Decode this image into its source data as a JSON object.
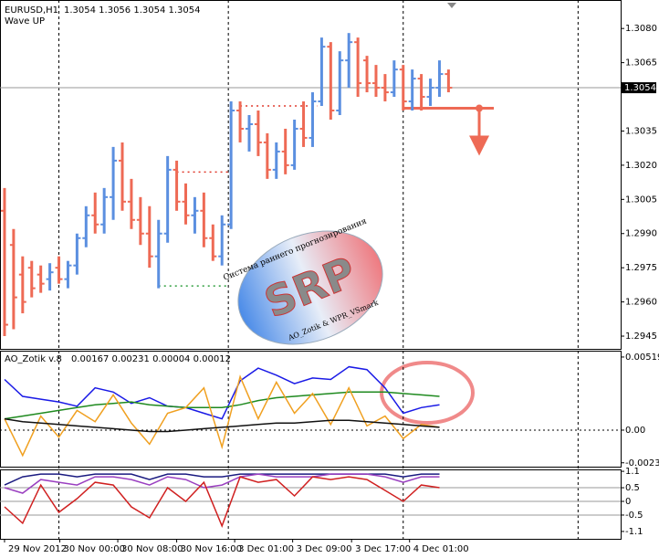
{
  "chart_data": [
    {
      "type": "ohlc",
      "title": "EURUSD,H1",
      "quote": "1.3054 1.3056 1.3054 1.3054",
      "subtitle": "Wave UP",
      "up_color": "#5b8fe0",
      "down_color": "#ee6a55",
      "open": [
        1.3,
        1.2985,
        1.2972,
        1.2975,
        1.2972,
        1.297,
        1.2975,
        1.297,
        1.2976,
        1.2988,
        1.2998,
        1.2994,
        1.3006,
        1.3022,
        1.3004,
        1.2996,
        1.299,
        1.298,
        1.299,
        1.3018,
        1.3004,
        1.2998,
        1.3,
        1.2988,
        1.298,
        1.2994,
        1.3044,
        1.3036,
        1.3038,
        1.303,
        1.3018,
        1.3026,
        1.302,
        1.3036,
        1.3032,
        1.3048,
        1.3072,
        1.3044,
        1.3066,
        1.3074,
        1.3066,
        1.3056,
        1.3054,
        1.3052,
        1.3062,
        1.3048,
        1.3058,
        1.305,
        1.3054,
        1.306
      ],
      "high": [
        1.301,
        1.2992,
        1.298,
        1.2978,
        1.2976,
        1.2977,
        1.298,
        1.2978,
        1.299,
        1.3002,
        1.3008,
        1.301,
        1.3028,
        1.303,
        1.3014,
        1.3006,
        1.3002,
        1.2996,
        1.3024,
        1.3022,
        1.3012,
        1.3006,
        1.3008,
        1.2994,
        1.2998,
        1.3048,
        1.3048,
        1.3042,
        1.3044,
        1.3034,
        1.303,
        1.3036,
        1.304,
        1.3048,
        1.3052,
        1.3076,
        1.3074,
        1.307,
        1.3078,
        1.3076,
        1.3068,
        1.3064,
        1.306,
        1.3066,
        1.3064,
        1.3062,
        1.306,
        1.3058,
        1.3066,
        1.3062
      ],
      "low": [
        1.2945,
        1.2948,
        1.2955,
        1.2962,
        1.2964,
        1.2965,
        1.2968,
        1.2966,
        1.2972,
        1.2984,
        1.299,
        1.299,
        1.2996,
        1.3,
        1.2992,
        1.2985,
        1.2975,
        1.2966,
        1.2986,
        1.3,
        1.2994,
        1.299,
        1.2984,
        1.2978,
        1.2976,
        1.2992,
        1.303,
        1.3026,
        1.3024,
        1.3014,
        1.3014,
        1.3016,
        1.3018,
        1.3028,
        1.3028,
        1.3046,
        1.304,
        1.3042,
        1.3054,
        1.305,
        1.3052,
        1.305,
        1.3048,
        1.305,
        1.3044,
        1.3044,
        1.3044,
        1.3046,
        1.305,
        1.3052
      ],
      "close": [
        1.295,
        1.2962,
        1.296,
        1.2966,
        1.2968,
        1.2973,
        1.297,
        1.2976,
        1.2988,
        1.2998,
        1.2994,
        1.3006,
        1.3022,
        1.3004,
        1.2996,
        1.299,
        1.298,
        1.299,
        1.3018,
        1.3004,
        1.2998,
        1.3,
        1.2988,
        1.298,
        1.2994,
        1.3044,
        1.3036,
        1.3038,
        1.303,
        1.3018,
        1.3026,
        1.302,
        1.3036,
        1.3032,
        1.3048,
        1.3072,
        1.3044,
        1.3066,
        1.3074,
        1.3056,
        1.3056,
        1.3054,
        1.3052,
        1.3062,
        1.3048,
        1.3058,
        1.305,
        1.3054,
        1.306,
        1.3054
      ],
      "xlim": [
        -0.5,
        68
      ],
      "ylim": [
        1.2939,
        1.30925
      ],
      "yticks": [
        {
          "value": 1.308,
          "label": "1.3080"
        },
        1.3065,
        1.3035,
        {
          "value": 1.302,
          "label": "1.3020"
        },
        1.3005,
        {
          "value": 1.299,
          "label": "1.2990"
        },
        1.2975,
        {
          "value": 1.296,
          "label": "1.2960"
        },
        1.2945
      ],
      "last_price": {
        "value": 1.3054,
        "label": "1.3054"
      },
      "separators": [
        6,
        24.7,
        44,
        63.3
      ],
      "levels": [
        {
          "value": 1.3017,
          "from": 19,
          "to": 25,
          "color": "#e0392b",
          "style": "dotted"
        },
        {
          "value": 1.2967,
          "from": 17,
          "to": 24.5,
          "color": "#2e9e3e",
          "style": "dotted"
        },
        {
          "value": 1.3046,
          "from": 26,
          "to": 34.5,
          "color": "#e0392b",
          "style": "dotted"
        },
        {
          "value": 1.3045,
          "from": 44,
          "to": 54,
          "color": "#ee6a55",
          "style": "solid"
        }
      ],
      "logo": {
        "top": "Система раннего прогнозирования",
        "main": "SRP",
        "bottom": "AO_Zotik & WPR_VSmark"
      }
    },
    {
      "type": "line",
      "title": "AO_Zotik v.8",
      "quote": "0.00167 0.00231 0.00004 0.00012",
      "xlim": [
        -0.5,
        68
      ],
      "ylim": [
        -0.00266,
        0.00564
      ],
      "yticks": [
        0.00519,
        {
          "value": 0,
          "label": "0.00"
        },
        -0.00232
      ],
      "hlines": [
        0
      ],
      "hline_style": "dotted",
      "x": [
        0,
        2,
        4,
        6,
        8,
        10,
        12,
        14,
        16,
        18,
        20,
        22,
        24,
        26,
        28,
        30,
        32,
        34,
        36,
        38,
        40,
        42,
        44,
        46,
        48
      ],
      "series": [
        {
          "color": "#1a1ae6",
          "values": [
            0.0036,
            0.0024,
            0.0022,
            0.002,
            0.0017,
            0.003,
            0.0027,
            0.0019,
            0.0023,
            0.0017,
            0.0016,
            0.0012,
            0.0008,
            0.0035,
            0.0044,
            0.0039,
            0.0033,
            0.0037,
            0.0036,
            0.0045,
            0.0043,
            0.003,
            0.0012,
            0.0016,
            0.0018
          ]
        },
        {
          "color": "#1f8a1f",
          "values": [
            0.0008,
            0.001,
            0.0012,
            0.0014,
            0.0016,
            0.0018,
            0.0019,
            0.002,
            0.0018,
            0.0017,
            0.0016,
            0.0016,
            0.0016,
            0.0018,
            0.0021,
            0.0023,
            0.0024,
            0.0025,
            0.0026,
            0.0027,
            0.0027,
            0.0027,
            0.0026,
            0.0025,
            0.0024
          ]
        },
        {
          "color": "#f0a020",
          "values": [
            0.0008,
            -0.0018,
            0.001,
            -0.0005,
            0.0014,
            0.0006,
            0.0025,
            0.0005,
            -0.001,
            0.0012,
            0.0016,
            0.003,
            -0.0012,
            0.0038,
            0.0008,
            0.0034,
            0.0012,
            0.0026,
            0.0004,
            0.003,
            0.0003,
            0.001,
            -0.0006,
            0.0004,
            0.0002
          ]
        },
        {
          "color": "#111111",
          "values": [
            0.0008,
            0.0006,
            0.0005,
            0.0004,
            0.0003,
            0.0002,
            0.0001,
            0.0,
            -0.0001,
            -0.0001,
            0.0,
            0.0001,
            0.0002,
            0.0003,
            0.0004,
            0.0005,
            0.0005,
            0.0006,
            0.0007,
            0.0007,
            0.0006,
            0.0005,
            0.0004,
            0.0003,
            0.0002
          ]
        }
      ]
    },
    {
      "type": "line",
      "xlim": [
        -0.5,
        68
      ],
      "ylim": [
        -1.37,
        1.17
      ],
      "yticks": [
        1.1,
        0.5,
        0,
        -0.5,
        -1.1
      ],
      "hlines": [
        0.5,
        0,
        -0.5
      ],
      "hline_style": "solid",
      "xticks": [
        {
          "value": 0,
          "label": "29 Nov 2012"
        },
        {
          "value": 6.1,
          "label": "30 Nov 00:00"
        },
        {
          "value": 12.5,
          "label": "30 Nov 08:00"
        },
        {
          "value": 19,
          "label": "30 Nov 16:00"
        },
        {
          "value": 25.4,
          "label": "3 Dec 01:00"
        },
        {
          "value": 31.8,
          "label": "3 Dec 09:00"
        },
        {
          "value": 38.3,
          "label": "3 Dec 17:00"
        },
        {
          "value": 44.7,
          "label": "4 Dec 01:00"
        }
      ],
      "x": [
        0,
        2,
        4,
        6,
        8,
        10,
        12,
        14,
        16,
        18,
        20,
        22,
        24,
        26,
        28,
        30,
        32,
        34,
        36,
        38,
        40,
        42,
        44,
        46,
        48
      ],
      "series": [
        {
          "color": "#1a1a80",
          "values": [
            0.6,
            0.9,
            1.0,
            1.0,
            0.9,
            1.0,
            1.0,
            1.0,
            0.8,
            1.0,
            1.0,
            0.9,
            0.9,
            1.0,
            1.0,
            1.0,
            1.0,
            1.0,
            1.0,
            1.0,
            1.0,
            1.0,
            0.9,
            1.0,
            1.0
          ]
        },
        {
          "color": "#9a3fc0",
          "values": [
            0.5,
            0.3,
            0.8,
            0.7,
            0.6,
            0.9,
            0.9,
            0.8,
            0.6,
            0.9,
            0.8,
            0.5,
            0.6,
            0.9,
            1.0,
            0.9,
            0.9,
            0.9,
            1.0,
            1.0,
            1.0,
            0.9,
            0.7,
            0.9,
            0.9
          ]
        },
        {
          "color": "#d02020",
          "values": [
            -0.2,
            -0.8,
            0.6,
            -0.4,
            0.1,
            0.7,
            0.6,
            -0.2,
            -0.6,
            0.5,
            0.0,
            0.7,
            -0.9,
            0.9,
            0.7,
            0.8,
            0.2,
            0.9,
            0.8,
            0.9,
            0.8,
            0.4,
            0.0,
            0.6,
            0.5
          ]
        }
      ]
    }
  ]
}
